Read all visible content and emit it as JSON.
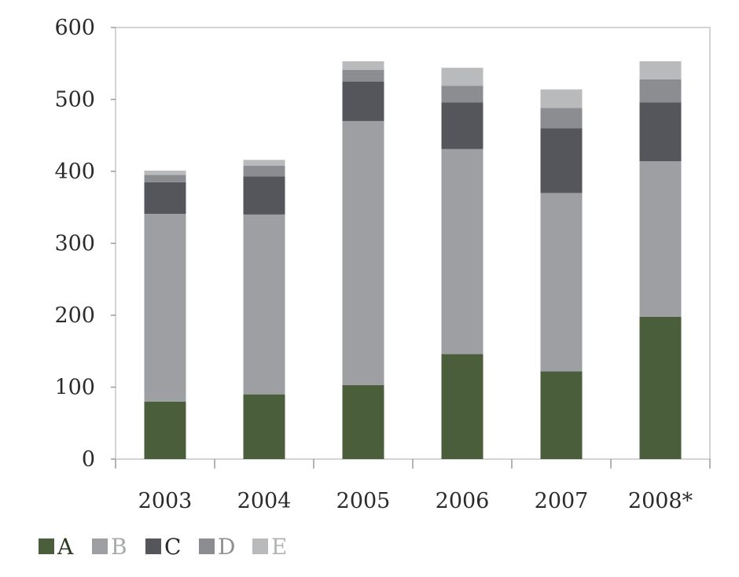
{
  "chart_data": {
    "type": "bar",
    "stacked": true,
    "title": "",
    "xlabel": "",
    "ylabel": "",
    "categories": [
      "2003",
      "2004",
      "2005",
      "2006",
      "2007",
      "2008*"
    ],
    "ylim": [
      0,
      600
    ],
    "yticks": [
      0,
      100,
      200,
      300,
      400,
      500,
      600
    ],
    "ytick_labels": [
      "0",
      "100",
      "200",
      "300",
      "400",
      "500",
      "600"
    ],
    "grid": false,
    "legend_position": "bottom-left",
    "series": [
      {
        "name": "A",
        "color": "#4a5e3c",
        "values": [
          80,
          90,
          103,
          146,
          122,
          198
        ]
      },
      {
        "name": "B",
        "color": "#9d9fa2",
        "values": [
          261,
          250,
          367,
          285,
          248,
          216
        ]
      },
      {
        "name": "C",
        "color": "#55565b",
        "values": [
          44,
          53,
          55,
          65,
          90,
          82
        ]
      },
      {
        "name": "D",
        "color": "#8b8d90",
        "values": [
          10,
          15,
          16,
          23,
          28,
          32
        ]
      },
      {
        "name": "E",
        "color": "#b9babc",
        "values": [
          6,
          8,
          12,
          25,
          26,
          25
        ]
      }
    ],
    "legend_text_colors": [
      "#2e3b26",
      "#a7a8aa",
      "#2a2a2e",
      "#8e8f92",
      "#b2b3b5"
    ]
  }
}
